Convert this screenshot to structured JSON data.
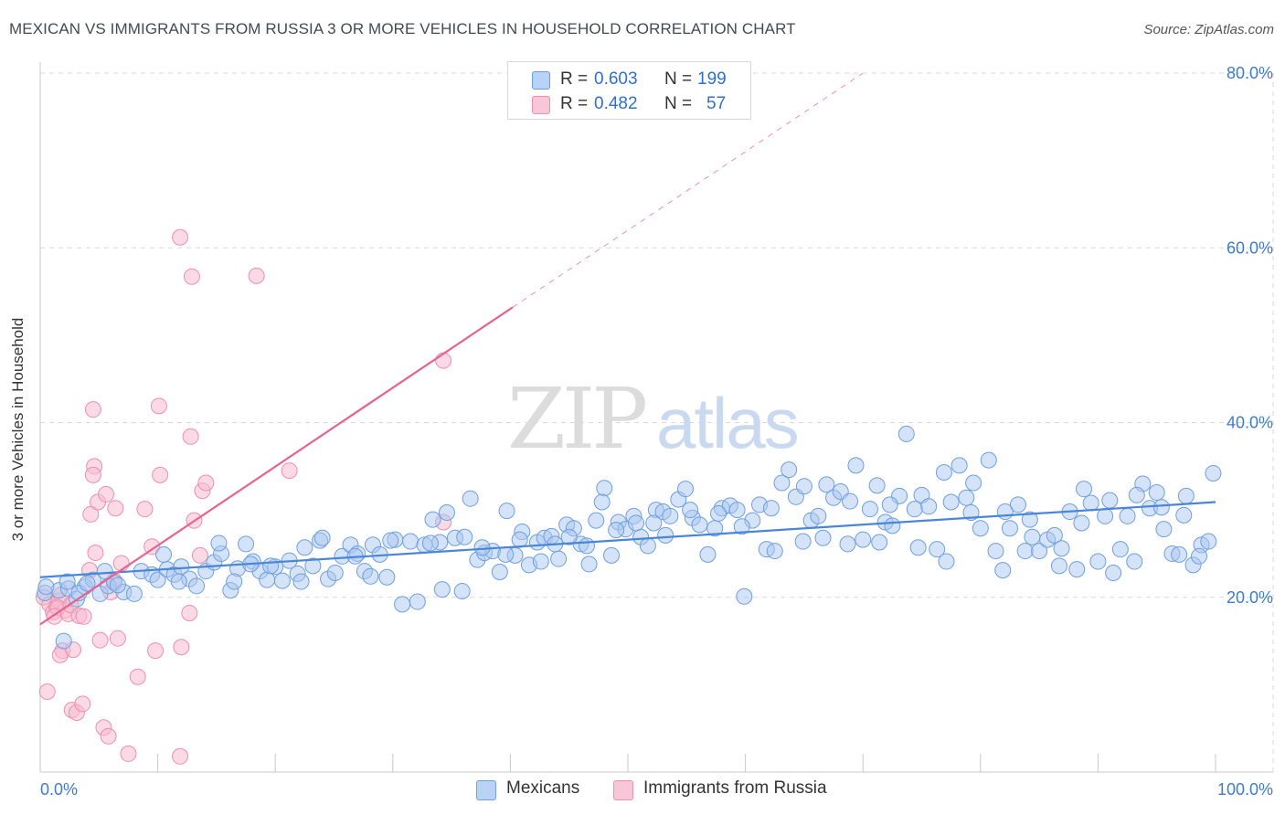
{
  "title": "MEXICAN VS IMMIGRANTS FROM RUSSIA 3 OR MORE VEHICLES IN HOUSEHOLD CORRELATION CHART",
  "source": "Source: ZipAtlas.com",
  "watermark": {
    "part1": "ZIP",
    "part2": "atlas"
  },
  "colors": {
    "blue": "#4a86d8",
    "blue_fill": "#a9c8f0",
    "blue_stroke": "#6f9fe0",
    "pink": "#e5638f",
    "pink_fill": "#f7bcd0",
    "pink_stroke": "#ee8fb0",
    "tick_label": "#3f7ad0",
    "grid": "#d9d9d9"
  },
  "legend": {
    "rows": [
      {
        "r_label": "R =",
        "r_value": "0.603",
        "n_label": "N =",
        "n_value": "199"
      },
      {
        "r_label": "R =",
        "r_value": "0.482",
        "n_label": "N =",
        "n_value": "57"
      }
    ]
  },
  "bottom_legend": {
    "series1": "Mexicans",
    "series2": "Immigrants from Russia"
  },
  "chart_data": {
    "type": "scatter",
    "title": "MEXICAN VS IMMIGRANTS FROM RUSSIA 3 OR MORE VEHICLES IN HOUSEHOLD CORRELATION CHART",
    "xlabel": "",
    "ylabel": "3 or more Vehicles in Household",
    "xlim": [
      0,
      100
    ],
    "ylim": [
      0,
      80
    ],
    "x_ticks": [
      "0.0%",
      "100.0%"
    ],
    "y_ticks": [
      "20.0%",
      "40.0%",
      "60.0%",
      "80.0%"
    ],
    "y_tick_values": [
      20,
      40,
      60,
      80
    ],
    "grid": true,
    "legend_position": "top-center",
    "series": [
      {
        "name": "Mexicans",
        "color": "#a9c8f0",
        "trend": {
          "x": [
            0,
            100
          ],
          "y": [
            22.3,
            30.9
          ],
          "style": "solid"
        },
        "points": [
          [
            0.4,
            20.5
          ],
          [
            1.6,
            20.8
          ],
          [
            2.4,
            21
          ],
          [
            3.1,
            19.8
          ],
          [
            3.8,
            21.2
          ],
          [
            4.5,
            22
          ],
          [
            5.1,
            20.4
          ],
          [
            5.8,
            21.3
          ],
          [
            6.3,
            21.7
          ],
          [
            7.1,
            20.6
          ],
          [
            8,
            20.4
          ],
          [
            8.6,
            23
          ],
          [
            9.5,
            22.6
          ],
          [
            10,
            22
          ],
          [
            10.8,
            23.2
          ],
          [
            11.4,
            22.6
          ],
          [
            12,
            23.5
          ],
          [
            12.7,
            22.1
          ],
          [
            13.3,
            21.3
          ],
          [
            14.1,
            23
          ],
          [
            14.8,
            24
          ],
          [
            15.4,
            25
          ],
          [
            16.2,
            20.8
          ],
          [
            16.8,
            23.3
          ],
          [
            17.5,
            26.1
          ],
          [
            18.1,
            24.1
          ],
          [
            18.7,
            23
          ],
          [
            19.3,
            22
          ],
          [
            20,
            23.5
          ],
          [
            20.6,
            21.9
          ],
          [
            21.2,
            24.2
          ],
          [
            21.9,
            22.7
          ],
          [
            22.5,
            25.7
          ],
          [
            23.2,
            23.6
          ],
          [
            23.8,
            26.5
          ],
          [
            24.5,
            22.1
          ],
          [
            25.1,
            22.8
          ],
          [
            25.7,
            24.7
          ],
          [
            26.4,
            26
          ],
          [
            27,
            25
          ],
          [
            27.6,
            23
          ],
          [
            28.3,
            26
          ],
          [
            28.9,
            24.9
          ],
          [
            29.5,
            22.3
          ],
          [
            30.2,
            26.6
          ],
          [
            30.8,
            19.2
          ],
          [
            31.5,
            26.4
          ],
          [
            32.1,
            19.5
          ],
          [
            32.7,
            26
          ],
          [
            33.4,
            28.9
          ],
          [
            34,
            26.3
          ],
          [
            34.6,
            29.7
          ],
          [
            35.3,
            26.8
          ],
          [
            35.9,
            20.7
          ],
          [
            36.6,
            31.3
          ],
          [
            37.2,
            24.3
          ],
          [
            37.8,
            25.1
          ],
          [
            38.5,
            25.3
          ],
          [
            39.1,
            22.9
          ],
          [
            39.7,
            29.9
          ],
          [
            40.4,
            24.8
          ],
          [
            41,
            27.5
          ],
          [
            41.6,
            23.7
          ],
          [
            42.3,
            26.3
          ],
          [
            42.9,
            26.8
          ],
          [
            43.5,
            27
          ],
          [
            44.1,
            24.4
          ],
          [
            44.8,
            28.3
          ],
          [
            45.4,
            27.9
          ],
          [
            46,
            26.1
          ],
          [
            46.7,
            23.8
          ],
          [
            47.3,
            28.8
          ],
          [
            48,
            32.5
          ],
          [
            48.6,
            24.8
          ],
          [
            49.2,
            28.6
          ],
          [
            49.8,
            27.8
          ],
          [
            50.5,
            29.3
          ],
          [
            51.1,
            26.9
          ],
          [
            51.7,
            25.9
          ],
          [
            52.4,
            30
          ],
          [
            53,
            29.8
          ],
          [
            53.6,
            29.3
          ],
          [
            54.3,
            31.2
          ],
          [
            54.9,
            32.4
          ],
          [
            55.5,
            29.1
          ],
          [
            56.1,
            28.3
          ],
          [
            56.8,
            24.9
          ],
          [
            57.4,
            27.9
          ],
          [
            58,
            30.2
          ],
          [
            58.7,
            30.5
          ],
          [
            59.3,
            30
          ],
          [
            59.9,
            20.1
          ],
          [
            60.6,
            28.8
          ],
          [
            61.2,
            30.6
          ],
          [
            61.8,
            25.5
          ],
          [
            62.5,
            25.3
          ],
          [
            63.1,
            33.1
          ],
          [
            63.7,
            34.6
          ],
          [
            64.3,
            31.5
          ],
          [
            65,
            32.7
          ],
          [
            65.6,
            28.8
          ],
          [
            66.2,
            29.3
          ],
          [
            66.9,
            32.9
          ],
          [
            67.5,
            31.4
          ],
          [
            68.1,
            32.1
          ],
          [
            68.7,
            26.1
          ],
          [
            69.4,
            35.1
          ],
          [
            70,
            26.6
          ],
          [
            70.6,
            30.1
          ],
          [
            71.2,
            32.8
          ],
          [
            71.9,
            28.6
          ],
          [
            72.5,
            28.2
          ],
          [
            73.1,
            31.6
          ],
          [
            73.7,
            38.7
          ],
          [
            74.4,
            30.1
          ],
          [
            75,
            31.7
          ],
          [
            75.6,
            30.4
          ],
          [
            76.3,
            25.5
          ],
          [
            76.9,
            34.3
          ],
          [
            77.5,
            30.9
          ],
          [
            78.2,
            35.1
          ],
          [
            78.8,
            31.4
          ],
          [
            79.4,
            33.1
          ],
          [
            80,
            27.9
          ],
          [
            80.7,
            35.7
          ],
          [
            81.3,
            25.3
          ],
          [
            81.9,
            23.1
          ],
          [
            82.5,
            27.9
          ],
          [
            83.2,
            30.6
          ],
          [
            83.8,
            25.3
          ],
          [
            84.4,
            26.9
          ],
          [
            85,
            25.3
          ],
          [
            85.7,
            26.6
          ],
          [
            86.3,
            27.1
          ],
          [
            86.9,
            25.6
          ],
          [
            87.6,
            29.8
          ],
          [
            88.2,
            23.2
          ],
          [
            88.8,
            32.4
          ],
          [
            89.4,
            30.8
          ],
          [
            90,
            24.1
          ],
          [
            90.6,
            29.3
          ],
          [
            91.3,
            22.8
          ],
          [
            91.9,
            25.5
          ],
          [
            92.5,
            29.3
          ],
          [
            93.1,
            24.1
          ],
          [
            93.8,
            33
          ],
          [
            94.4,
            30.2
          ],
          [
            95,
            32
          ],
          [
            95.6,
            27.8
          ],
          [
            96.3,
            25
          ],
          [
            96.9,
            24.9
          ],
          [
            97.5,
            31.6
          ],
          [
            98.1,
            23.7
          ],
          [
            98.8,
            26
          ],
          [
            99.4,
            26.4
          ],
          [
            0.5,
            21.2
          ],
          [
            2,
            15
          ],
          [
            2.3,
            21.8
          ],
          [
            3.3,
            20.5
          ],
          [
            4,
            21.6
          ],
          [
            5.5,
            23
          ],
          [
            6.6,
            21.4
          ],
          [
            10.5,
            24.9
          ],
          [
            11.8,
            21.8
          ],
          [
            15.2,
            26.2
          ],
          [
            16.5,
            21.8
          ],
          [
            17.9,
            23.8
          ],
          [
            19.6,
            23.6
          ],
          [
            22.2,
            21.8
          ],
          [
            24,
            26.8
          ],
          [
            26.8,
            24.7
          ],
          [
            28.1,
            22.4
          ],
          [
            29.8,
            26.5
          ],
          [
            33.2,
            26.2
          ],
          [
            34.2,
            20.9
          ],
          [
            36.1,
            26.9
          ],
          [
            37.6,
            25.7
          ],
          [
            39.6,
            24.9
          ],
          [
            40.8,
            26.6
          ],
          [
            42.6,
            24.1
          ],
          [
            43.8,
            26.1
          ],
          [
            45,
            26.9
          ],
          [
            46.5,
            25.9
          ],
          [
            47.8,
            30.9
          ],
          [
            49,
            27.7
          ],
          [
            50.7,
            28.5
          ],
          [
            52.2,
            28.5
          ],
          [
            53.2,
            27.1
          ],
          [
            55.3,
            30
          ],
          [
            57.7,
            29.6
          ],
          [
            59.7,
            28.1
          ],
          [
            62.2,
            30.2
          ],
          [
            64.9,
            26.4
          ],
          [
            66.6,
            26.8
          ],
          [
            68.9,
            31
          ],
          [
            71.4,
            26.3
          ],
          [
            72.3,
            30.6
          ],
          [
            74.7,
            25.7
          ],
          [
            77.1,
            24.1
          ],
          [
            79.2,
            29.7
          ],
          [
            82.1,
            29.8
          ],
          [
            84.2,
            28.9
          ],
          [
            86.7,
            23.6
          ],
          [
            88.6,
            28.5
          ],
          [
            91,
            31.1
          ],
          [
            93.3,
            31.7
          ],
          [
            95.4,
            30.3
          ],
          [
            97.3,
            29.4
          ],
          [
            98.6,
            24.7
          ],
          [
            99.8,
            34.2
          ]
        ]
      },
      {
        "name": "Immigrants from Russia",
        "color": "#f7bcd0",
        "trend": {
          "x": [
            0,
            40.2
          ],
          "y": [
            16.9,
            53.2
          ],
          "style": "solid",
          "extended_x": [
            40.2,
            70
          ],
          "extended_y": [
            53.2,
            80
          ],
          "extended_style": "dashed"
        },
        "points": [
          [
            0.3,
            20
          ],
          [
            0.8,
            19.2
          ],
          [
            1.1,
            18.3
          ],
          [
            1.4,
            18.9
          ],
          [
            1.6,
            19.6
          ],
          [
            1.8,
            20.3
          ],
          [
            2.1,
            18.5
          ],
          [
            0.6,
            9.2
          ],
          [
            1.5,
            18.8
          ],
          [
            1.2,
            17.8
          ],
          [
            2.4,
            18.1
          ],
          [
            1.9,
            13.9
          ],
          [
            2.6,
            19.1
          ],
          [
            1.7,
            13.4
          ],
          [
            2.8,
            14
          ],
          [
            2.7,
            7.1
          ],
          [
            3.1,
            6.8
          ],
          [
            3.3,
            17.9
          ],
          [
            3.6,
            7.8
          ],
          [
            3.7,
            17.8
          ],
          [
            4.2,
            23.1
          ],
          [
            4.3,
            29.5
          ],
          [
            4.7,
            25.1
          ],
          [
            4.9,
            30.9
          ],
          [
            5.1,
            15.1
          ],
          [
            5.4,
            5.1
          ],
          [
            5.8,
            4.1
          ],
          [
            5.6,
            31.8
          ],
          [
            6,
            20.6
          ],
          [
            6.3,
            21.9
          ],
          [
            6.4,
            30.2
          ],
          [
            6.6,
            15.3
          ],
          [
            6.9,
            23.9
          ],
          [
            7.5,
            2.1
          ],
          [
            8.3,
            10.9
          ],
          [
            8.9,
            30.1
          ],
          [
            9.5,
            25.8
          ],
          [
            9.8,
            13.9
          ],
          [
            10.1,
            41.9
          ],
          [
            10.2,
            34
          ],
          [
            11.9,
            1.8
          ],
          [
            12,
            14.3
          ],
          [
            12.8,
            38.4
          ],
          [
            12.7,
            18.2
          ],
          [
            13.1,
            28.8
          ],
          [
            13.6,
            24.8
          ],
          [
            13.8,
            32.2
          ],
          [
            14.1,
            33.1
          ],
          [
            11.9,
            61.2
          ],
          [
            12.9,
            56.7
          ],
          [
            18.4,
            56.8
          ],
          [
            21.2,
            34.5
          ],
          [
            34.3,
            28.6
          ],
          [
            34.3,
            47.1
          ],
          [
            4.6,
            35
          ],
          [
            4.5,
            34
          ],
          [
            4.5,
            41.5
          ]
        ]
      }
    ]
  }
}
